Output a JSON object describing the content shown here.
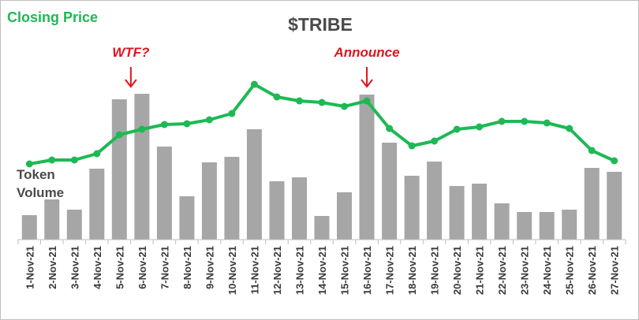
{
  "chart_data": {
    "type": "bar+line",
    "title": "$TRIBE",
    "categories": [
      "1-Nov-21",
      "2-Nov-21",
      "3-Nov-21",
      "4-Nov-21",
      "5-Nov-21",
      "6-Nov-21",
      "7-Nov-21",
      "8-Nov-21",
      "9-Nov-21",
      "10-Nov-21",
      "11-Nov-21",
      "12-Nov-21",
      "13-Nov-21",
      "14-Nov-21",
      "15-Nov-21",
      "16-Nov-21",
      "17-Nov-21",
      "18-Nov-21",
      "19-Nov-21",
      "20-Nov-21",
      "21-Nov-21",
      "22-Nov-21",
      "23-Nov-21",
      "24-Nov-21",
      "25-Nov-21",
      "26-Nov-21",
      "27-Nov-21"
    ],
    "series": [
      {
        "name": "Token Volume",
        "kind": "bar",
        "color": "#a6a6a6",
        "values": [
          31,
          51,
          38,
          90,
          178,
          185,
          118,
          55,
          98,
          105,
          140,
          74,
          79,
          30,
          60,
          184,
          123,
          81,
          99,
          68,
          71,
          46,
          35,
          35,
          38,
          91,
          86
        ]
      },
      {
        "name": "Closing Price",
        "kind": "line",
        "color": "#1db954",
        "values": [
          96,
          101,
          101,
          109,
          133,
          140,
          146,
          147,
          152,
          160,
          197,
          181,
          176,
          174,
          169,
          176,
          141,
          119,
          125,
          140,
          143,
          150,
          150,
          148,
          141,
          113,
          100
        ]
      }
    ],
    "ylim": [
      0,
      200
    ],
    "annotations": [
      {
        "text": "WTF?",
        "category": "6-Nov-21"
      },
      {
        "text": "Announce",
        "category": "16-Nov-21"
      }
    ],
    "legend": "none",
    "grid": false
  },
  "colors": {
    "bar": "#a6a6a6",
    "line": "#1db954",
    "annotation": "#e0141e",
    "title": "#4a4a4a",
    "axis": "#bfbfbf"
  }
}
